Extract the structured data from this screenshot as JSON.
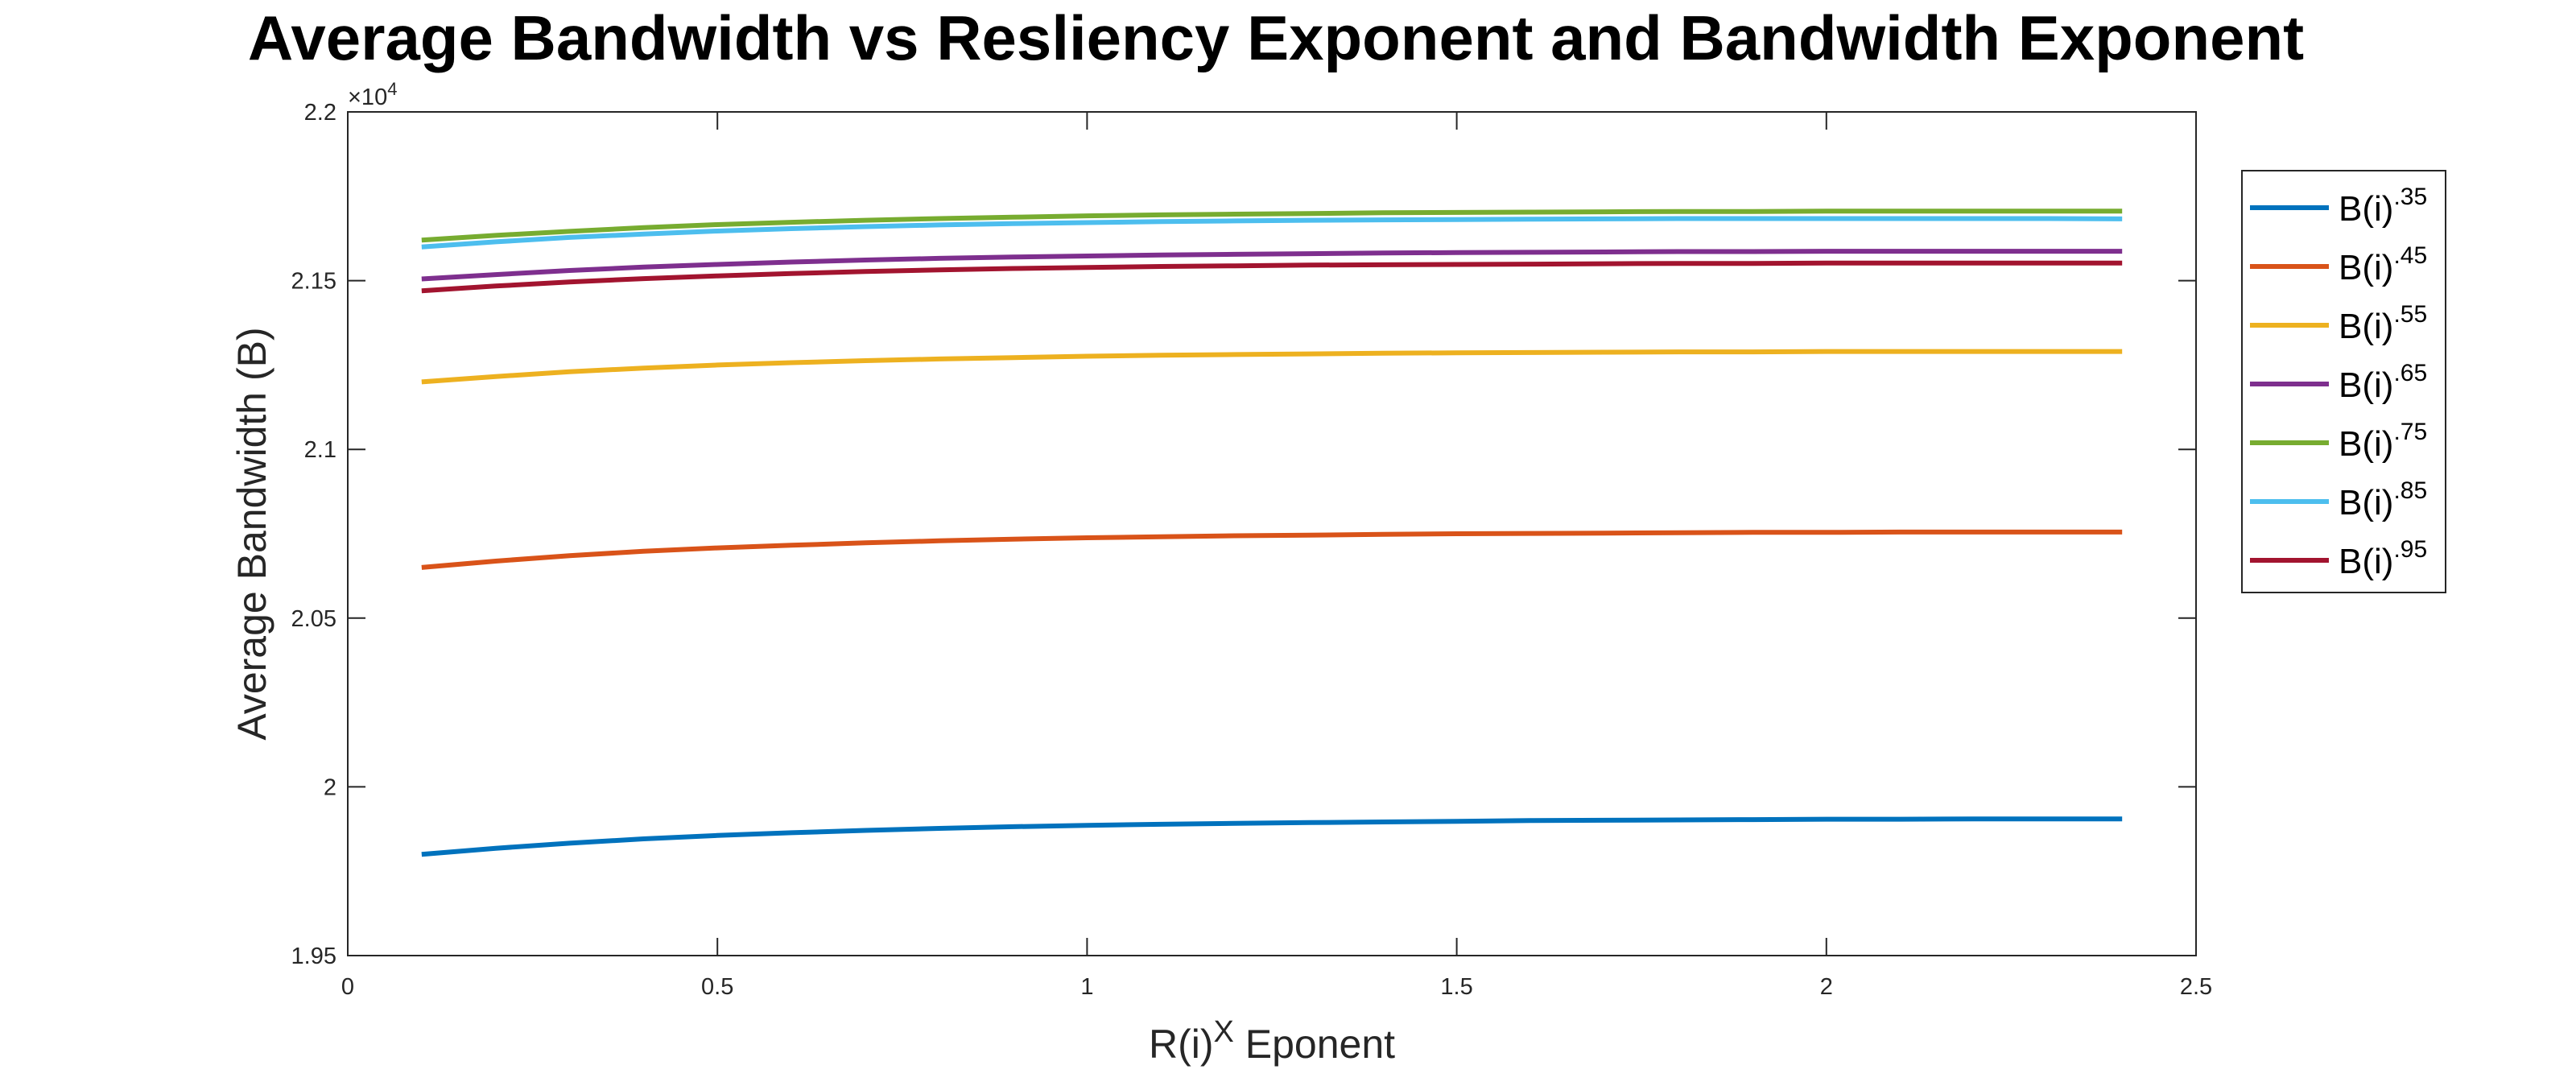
{
  "chart_data": {
    "type": "line",
    "title": "Average Bandwidth vs Resliency Exponent and Bandwidth Exponent",
    "xlabel": {
      "base": "R(i)",
      "superscript": "X",
      "suffix": " Eponent"
    },
    "ylabel": "Average Bandwidth (B)",
    "y_multiplier_label": "×10",
    "y_multiplier_exponent": "4",
    "xlim": [
      0,
      2.5
    ],
    "ylim": [
      19500,
      22000
    ],
    "x_ticks": [
      0,
      0.5,
      1,
      1.5,
      2,
      2.5
    ],
    "x_tick_labels": [
      "0",
      "0.5",
      "1",
      "1.5",
      "2",
      "2.5"
    ],
    "y_ticks": [
      19500,
      20000,
      20500,
      21000,
      21500,
      22000
    ],
    "y_tick_labels": [
      "1.95",
      "2",
      "2.05",
      "2.1",
      "2.15",
      "2.2"
    ],
    "grid": false,
    "legend_position": "outside-right",
    "x": [
      0.1,
      0.2,
      0.3,
      0.4,
      0.5,
      0.6,
      0.7,
      0.8,
      0.9,
      1.0,
      1.1,
      1.2,
      1.3,
      1.4,
      1.5,
      1.6,
      1.7,
      1.8,
      1.9,
      2.0,
      2.1,
      2.2,
      2.3,
      2.4
    ],
    "series": [
      {
        "name": "B(i)",
        "exponent": ".35",
        "color": "#0072BD",
        "values": [
          19800,
          19818,
          19833,
          19846,
          19856,
          19864,
          19871,
          19877,
          19882,
          19886,
          19889,
          19892,
          19894,
          19896,
          19898,
          19900,
          19901,
          19902,
          19903,
          19904,
          19904,
          19905,
          19905,
          19905
        ]
      },
      {
        "name": "B(i)",
        "exponent": ".45",
        "color": "#D95319",
        "values": [
          20650,
          20669,
          20685,
          20698,
          20708,
          20716,
          20723,
          20729,
          20734,
          20738,
          20741,
          20744,
          20746,
          20748,
          20750,
          20751,
          20752,
          20753,
          20754,
          20754,
          20755,
          20755,
          20755,
          20755
        ]
      },
      {
        "name": "B(i)",
        "exponent": ".55",
        "color": "#EDB120",
        "values": [
          21200,
          21216,
          21230,
          21241,
          21250,
          21257,
          21263,
          21268,
          21272,
          21276,
          21279,
          21281,
          21283,
          21285,
          21286,
          21287,
          21288,
          21289,
          21289,
          21290,
          21290,
          21290,
          21290,
          21290
        ]
      },
      {
        "name": "B(i)",
        "exponent": ".65",
        "color": "#7E2F8E",
        "values": [
          21505,
          21518,
          21530,
          21540,
          21548,
          21555,
          21561,
          21566,
          21570,
          21573,
          21576,
          21578,
          21580,
          21582,
          21583,
          21584,
          21585,
          21586,
          21586,
          21587,
          21587,
          21587,
          21587,
          21587
        ]
      },
      {
        "name": "B(i)",
        "exponent": ".75",
        "color": "#77AC30",
        "values": [
          21620,
          21634,
          21646,
          21657,
          21666,
          21673,
          21679,
          21684,
          21688,
          21692,
          21695,
          21697,
          21699,
          21701,
          21702,
          21703,
          21704,
          21705,
          21705,
          21706,
          21706,
          21706,
          21706,
          21706
        ]
      },
      {
        "name": "B(i)",
        "exponent": ".85",
        "color": "#4DBEEE",
        "values": [
          21600,
          21615,
          21628,
          21638,
          21647,
          21654,
          21660,
          21665,
          21669,
          21672,
          21675,
          21677,
          21679,
          21680,
          21681,
          21682,
          21683,
          21684,
          21684,
          21684,
          21684,
          21684,
          21684,
          21683
        ]
      },
      {
        "name": "B(i)",
        "exponent": ".95",
        "color": "#A2142F",
        "values": [
          21470,
          21484,
          21496,
          21506,
          21514,
          21521,
          21527,
          21532,
          21536,
          21539,
          21542,
          21544,
          21546,
          21547,
          21548,
          21549,
          21550,
          21551,
          21551,
          21552,
          21552,
          21552,
          21552,
          21552
        ]
      }
    ]
  }
}
